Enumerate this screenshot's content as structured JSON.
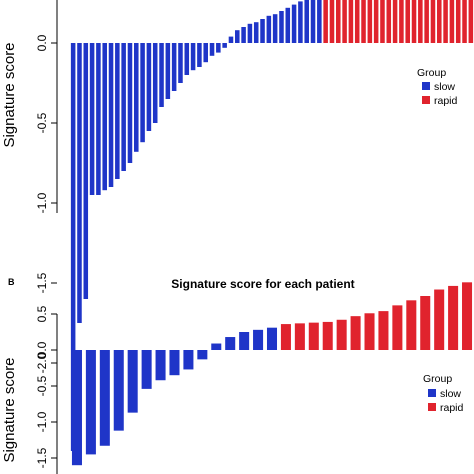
{
  "colors": {
    "slow": "#1f35c8",
    "rapid": "#e0232d"
  },
  "chart_data": [
    {
      "type": "bar",
      "panel_label": "",
      "title": "",
      "ylabel": "Signature score",
      "ylim": [
        -2.6,
        0.45
      ],
      "yticks": [
        "-2.0",
        "-1.5",
        "-1.0",
        "-0.5",
        "0.0",
        "0.5"
      ],
      "legend": {
        "title": "Group",
        "entries": [
          "slow",
          "rapid"
        ],
        "position": "right"
      },
      "series": [
        {
          "name": "slow",
          "values": [
            -2.55,
            -1.75,
            -1.6,
            -0.95,
            -0.95,
            -0.92,
            -0.9,
            -0.85,
            -0.8,
            -0.75,
            -0.68,
            -0.62,
            -0.55,
            -0.5,
            -0.4,
            -0.35,
            -0.3,
            -0.25,
            -0.2,
            -0.17,
            -0.15,
            -0.12,
            -0.08,
            -0.06,
            -0.03,
            0.04,
            0.08,
            0.1,
            0.12,
            0.13,
            0.15,
            0.17,
            0.18,
            0.2,
            0.22,
            0.24,
            0.26,
            0.28,
            0.3,
            0.32
          ]
        },
        {
          "name": "rapid",
          "values": [
            0.34,
            0.35,
            0.36,
            0.45,
            0.45,
            0.45,
            0.45,
            0.45,
            0.45,
            0.45,
            0.45,
            0.45,
            0.45,
            0.45,
            0.45,
            0.45,
            0.45,
            0.45,
            0.45,
            0.45,
            0.45,
            0.45,
            0.45,
            0.45
          ]
        }
      ]
    },
    {
      "type": "bar",
      "panel_label": "B",
      "title": "Signature score for each patient",
      "ylabel": "Signature score",
      "ylim": [
        -1.65,
        0.95
      ],
      "yticks": [
        "-1.5",
        "-1.0",
        "-0.5",
        "0.0",
        "0.5"
      ],
      "legend": {
        "title": "Group",
        "entries": [
          "slow",
          "rapid"
        ],
        "position": "right"
      },
      "series": [
        {
          "name": "slow",
          "values": [
            -1.6,
            -1.45,
            -1.33,
            -1.12,
            -0.87,
            -0.54,
            -0.42,
            -0.35,
            -0.27,
            -0.13,
            0.09,
            0.18,
            0.25,
            0.28,
            0.31
          ]
        },
        {
          "name": "rapid",
          "values": [
            0.36,
            0.37,
            0.38,
            0.39,
            0.42,
            0.47,
            0.51,
            0.54,
            0.62,
            0.69,
            0.75,
            0.84,
            0.89,
            0.94
          ]
        }
      ]
    }
  ]
}
